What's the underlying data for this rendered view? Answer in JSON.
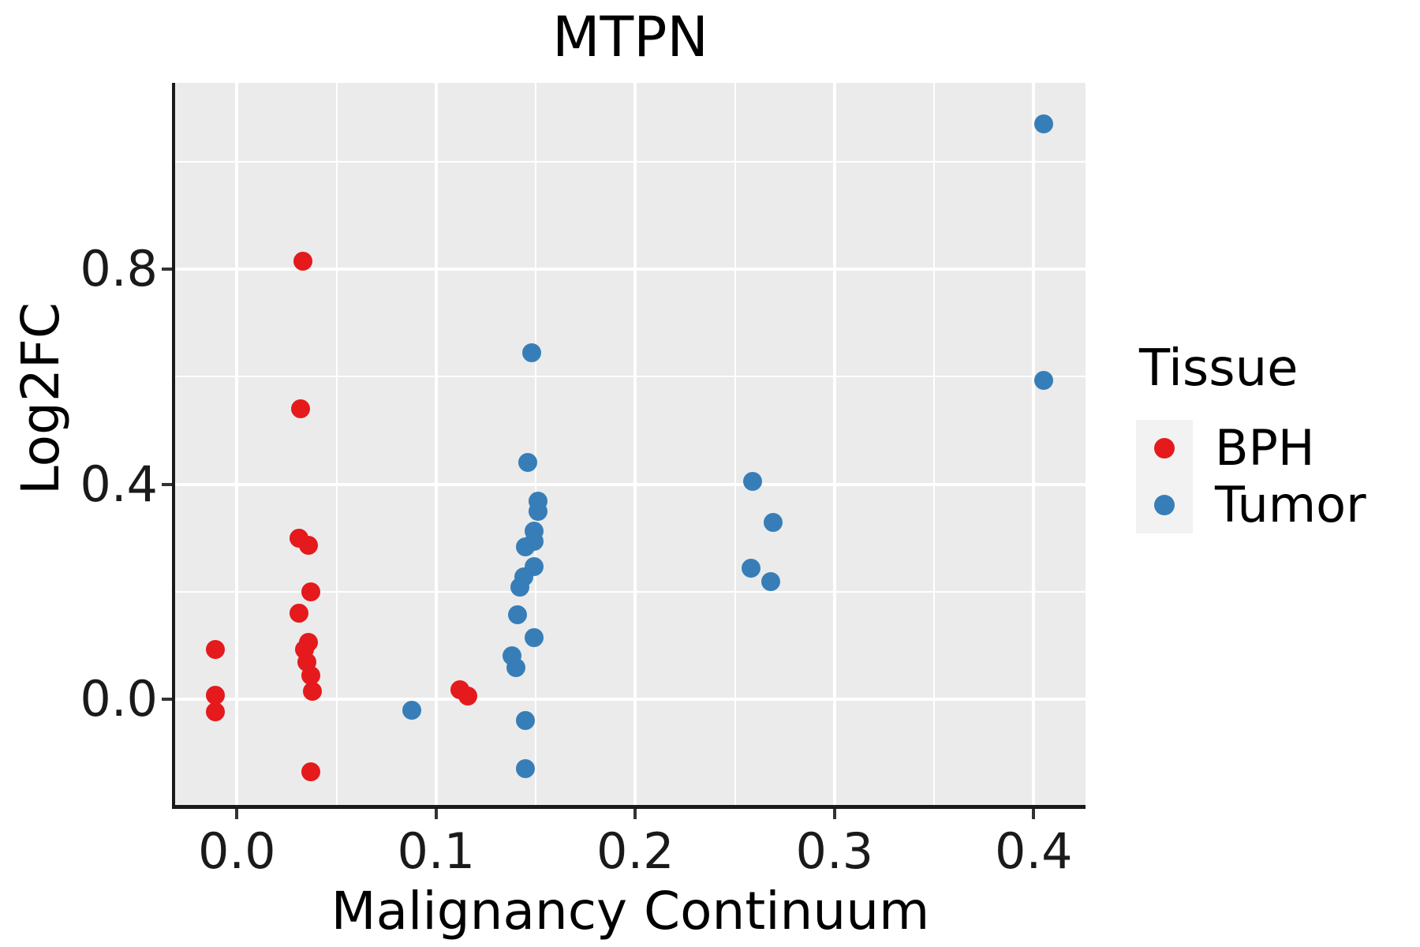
{
  "chart_data": {
    "type": "scatter",
    "title": "MTPN",
    "xlabel": "Malignancy Continuum",
    "ylabel": "Log2FC",
    "xlim": [
      -0.031,
      0.426
    ],
    "ylim": [
      -0.2,
      1.147
    ],
    "x_ticks": [
      0.0,
      0.1,
      0.2,
      0.3,
      0.4
    ],
    "x_tick_labels": [
      "0.0",
      "0.1",
      "0.2",
      "0.3",
      "0.4"
    ],
    "x_minor_ticks": [
      0.05,
      0.15,
      0.25,
      0.35
    ],
    "y_ticks": [
      0.0,
      0.4,
      0.8
    ],
    "y_tick_labels": [
      "0.0",
      "0.4",
      "0.8"
    ],
    "y_minor_ticks": [
      0.2,
      0.6,
      1.0
    ],
    "grid": true,
    "panel_background": "#EBEBEB",
    "gridline_color": "#ffffff",
    "legend": {
      "title": "Tissue",
      "position": "right",
      "key_background": "#F2F2F2"
    },
    "series": [
      {
        "name": "BPH",
        "color": "#E41A1C",
        "points": [
          [
            -0.011,
            0.093
          ],
          [
            -0.011,
            0.007
          ],
          [
            -0.011,
            -0.023
          ],
          [
            0.033,
            0.815
          ],
          [
            0.032,
            0.54
          ],
          [
            0.031,
            0.3
          ],
          [
            0.036,
            0.286
          ],
          [
            0.037,
            0.2
          ],
          [
            0.031,
            0.16
          ],
          [
            0.036,
            0.105
          ],
          [
            0.034,
            0.093
          ],
          [
            0.035,
            0.069
          ],
          [
            0.037,
            0.044
          ],
          [
            0.038,
            0.014
          ],
          [
            0.037,
            -0.135
          ],
          [
            0.112,
            0.018
          ],
          [
            0.116,
            0.005
          ]
        ]
      },
      {
        "name": "Tumor",
        "color": "#377EB8",
        "points": [
          [
            0.088,
            -0.021
          ],
          [
            0.148,
            0.645
          ],
          [
            0.146,
            0.441
          ],
          [
            0.151,
            0.368
          ],
          [
            0.151,
            0.349
          ],
          [
            0.149,
            0.312
          ],
          [
            0.149,
            0.294
          ],
          [
            0.145,
            0.283
          ],
          [
            0.149,
            0.247
          ],
          [
            0.144,
            0.228
          ],
          [
            0.142,
            0.209
          ],
          [
            0.141,
            0.157
          ],
          [
            0.149,
            0.115
          ],
          [
            0.138,
            0.08
          ],
          [
            0.14,
            0.058
          ],
          [
            0.145,
            -0.04
          ],
          [
            0.145,
            -0.13
          ],
          [
            0.259,
            0.405
          ],
          [
            0.269,
            0.329
          ],
          [
            0.258,
            0.244
          ],
          [
            0.268,
            0.218
          ],
          [
            0.405,
            1.07
          ],
          [
            0.405,
            0.593
          ]
        ]
      }
    ]
  }
}
